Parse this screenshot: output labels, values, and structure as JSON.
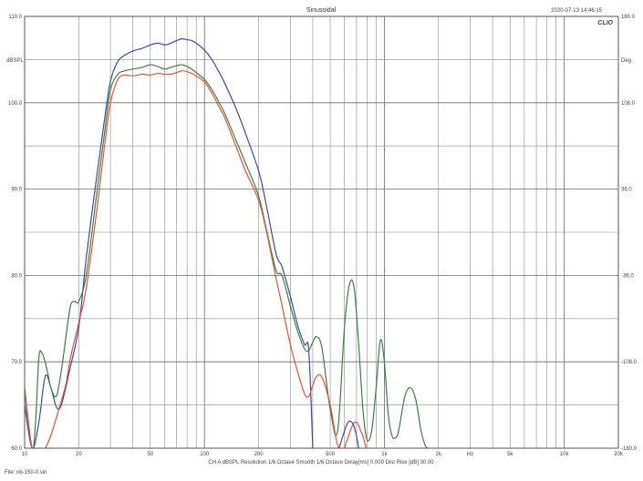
{
  "header": {
    "title": "Sinusoidal",
    "timestamp": "2020-07-13 14:46:15",
    "logo": "CLIO"
  },
  "footer": {
    "settings": "CH A   dBSPL   Resolution 1/6 Octave   Smooth 1/6 Octave   Delay[ms] 0.000   Dist Rise [dB] 30.00",
    "file": "File: nb-150-0.sin"
  },
  "chart_data": {
    "type": "line",
    "title": "Sinusoidal",
    "xlabel": "Hz",
    "ylabel": "dBSPL",
    "y2label": "Deg",
    "xscale": "log",
    "xlim": [
      10,
      20000
    ],
    "ylim": [
      60,
      110
    ],
    "y2lim": [
      -180,
      180
    ],
    "grid": true,
    "x_ticks": [
      {
        "v": 10,
        "label": "10"
      },
      {
        "v": 20,
        "label": "20"
      },
      {
        "v": 50,
        "label": "50"
      },
      {
        "v": 100,
        "label": "100"
      },
      {
        "v": 200,
        "label": "200"
      },
      {
        "v": 500,
        "label": "500"
      },
      {
        "v": 1000,
        "label": "1k"
      },
      {
        "v": 2000,
        "label": "2k"
      },
      {
        "v": 3000,
        "label": "Hz"
      },
      {
        "v": 5000,
        "label": "5k"
      },
      {
        "v": 10000,
        "label": "10k"
      },
      {
        "v": 20000,
        "label": "20k"
      }
    ],
    "y_ticks": [
      {
        "v": 110,
        "label": "110.0"
      },
      {
        "v": 100,
        "label": "100.0"
      },
      {
        "v": 90,
        "label": "90.0"
      },
      {
        "v": 80,
        "label": "80.0"
      },
      {
        "v": 70,
        "label": "70.0"
      },
      {
        "v": 60,
        "label": "60.0"
      }
    ],
    "y2_ticks": [
      {
        "v": 180,
        "label": "180.0"
      },
      {
        "v": 108,
        "label": "108.0"
      },
      {
        "v": 36,
        "label": "36.0"
      },
      {
        "v": -36,
        "label": "-36.0"
      },
      {
        "v": -108,
        "label": "-108.0"
      },
      {
        "v": -180,
        "label": "-180.0"
      }
    ],
    "series": [
      {
        "color": "#3d4a9e",
        "x": [
          10,
          11,
          12,
          13,
          14,
          15,
          16,
          18,
          20,
          22,
          25,
          28,
          30,
          33,
          36,
          40,
          45,
          50,
          55,
          60,
          65,
          70,
          75,
          80,
          85,
          90,
          100,
          110,
          120,
          130,
          150,
          170,
          200,
          220,
          250,
          270,
          300,
          330,
          360,
          380,
          400
        ],
        "y": [
          65,
          60,
          63,
          68.3,
          67,
          64.8,
          65,
          69.5,
          74,
          82,
          91,
          98.5,
          102.5,
          104.8,
          105.5,
          106,
          106.3,
          106.7,
          106.9,
          106.7,
          106.9,
          107.2,
          107.4,
          107.3,
          107.2,
          106.9,
          106.1,
          105,
          103.6,
          102.2,
          99.3,
          96.3,
          92.1,
          88.3,
          82.5,
          81,
          77.6,
          74.2,
          72,
          71.3,
          60
        ]
      },
      {
        "color": "#3f7d45",
        "x": [
          10,
          11,
          11.5,
          12,
          12.5,
          13,
          13.5,
          14,
          15,
          16,
          17,
          18,
          19,
          20,
          22,
          25,
          28,
          30,
          33,
          36,
          40,
          45,
          50,
          55,
          60,
          65,
          70,
          75,
          80,
          85,
          90,
          100,
          110,
          120,
          130,
          150,
          170,
          200,
          220,
          250,
          270,
          300,
          330,
          360,
          380,
          400,
          420,
          450,
          500,
          550,
          600,
          640,
          680,
          720,
          760,
          800,
          850,
          900,
          950,
          1000,
          1050,
          1100,
          1150,
          1200,
          1300,
          1400,
          1500,
          1600,
          1700,
          1800
        ],
        "y": [
          67,
          60,
          63,
          70.5,
          71,
          70,
          68.5,
          67,
          66,
          69,
          73,
          76.5,
          77,
          77,
          80,
          89,
          97,
          101.5,
          103.3,
          103.7,
          103.9,
          104.1,
          104.4,
          104.2,
          103.9,
          104.1,
          104.3,
          104.4,
          104.2,
          103.9,
          103.5,
          102.7,
          101.5,
          100.1,
          98.7,
          95.6,
          92.9,
          89.2,
          85.5,
          80.6,
          80,
          76.5,
          73.5,
          71.5,
          71.3,
          72.3,
          72.9,
          71.6,
          64.5,
          62,
          74,
          79,
          78.5,
          72,
          64.5,
          61,
          62,
          67,
          72.5,
          70,
          64,
          61.5,
          61.2,
          62,
          66,
          67,
          65.5,
          62,
          60.2,
          60
        ]
      },
      {
        "color": "#e0533a",
        "x": [
          10,
          11,
          12,
          13,
          14,
          15,
          16,
          17,
          18,
          20,
          22,
          25,
          28,
          30,
          33,
          36,
          40,
          45,
          50,
          55,
          60,
          65,
          70,
          75,
          80,
          85,
          90,
          100,
          110,
          120,
          130,
          150,
          170,
          200,
          220,
          250,
          270,
          300,
          330,
          360,
          380,
          400,
          420,
          450,
          500,
          540,
          560
        ],
        "y": [
          66.5,
          60,
          60,
          60,
          61.5,
          63.5,
          65.5,
          67.5,
          70.5,
          74.5,
          78.5,
          87,
          95.5,
          100,
          102.7,
          103.2,
          103.1,
          103.3,
          103.2,
          103.4,
          103.3,
          103.3,
          103.5,
          103.7,
          103.6,
          103.4,
          103.1,
          102.4,
          101.1,
          99.6,
          98.2,
          94.9,
          92,
          88.7,
          85.3,
          79.7,
          76.5,
          72,
          68.8,
          66.3,
          66,
          67.3,
          68.3,
          68.2,
          65,
          61,
          60
        ]
      },
      {
        "color": "#e0533a",
        "x": [
          600,
          660,
          700,
          740,
          770,
          790
        ],
        "y": [
          60,
          62.5,
          63,
          62,
          61,
          60
        ]
      },
      {
        "color": "#3d4a9e",
        "x": [
          560,
          620,
          660,
          690,
          720
        ],
        "y": [
          60,
          62.8,
          63,
          62,
          60
        ]
      }
    ]
  }
}
